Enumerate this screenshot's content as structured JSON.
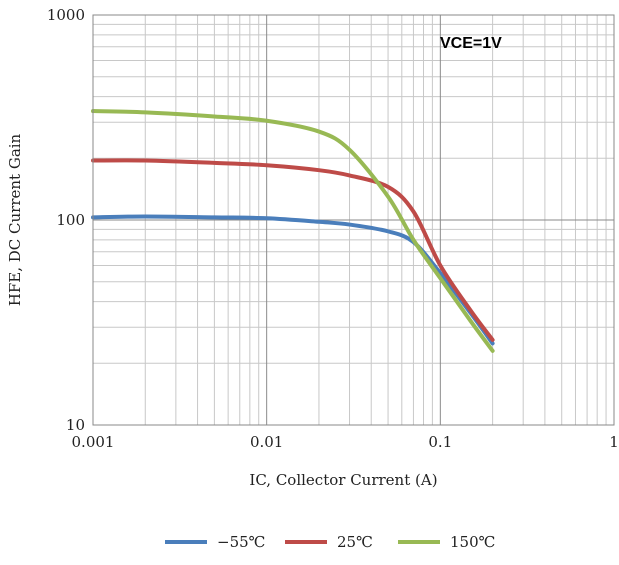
{
  "chart_data": {
    "type": "line",
    "title": "",
    "xlabel": "IC, Collector Current (A)",
    "ylabel": "HFE, DC Current Gain",
    "xscale": "log",
    "yscale": "log",
    "xlim": [
      0.001,
      1
    ],
    "ylim": [
      10,
      1000
    ],
    "xticks": [
      0.001,
      0.01,
      0.1,
      1
    ],
    "xtick_labels": [
      "0.001",
      "0.01",
      "0.1",
      "1"
    ],
    "yticks": [
      10,
      100,
      1000
    ],
    "ytick_labels": [
      "10",
      "100",
      "1000"
    ],
    "grid": true,
    "legend_position": "bottom",
    "annotation": "VCE=1V",
    "series": [
      {
        "name": "−55℃",
        "color": "#4a7ebb",
        "points": [
          [
            0.001,
            103
          ],
          [
            0.002,
            104
          ],
          [
            0.005,
            103
          ],
          [
            0.01,
            102
          ],
          [
            0.02,
            98
          ],
          [
            0.03,
            95
          ],
          [
            0.05,
            88
          ],
          [
            0.07,
            78
          ],
          [
            0.1,
            55
          ],
          [
            0.15,
            35
          ],
          [
            0.2,
            25
          ]
        ]
      },
      {
        "name": "25℃",
        "color": "#be4b48",
        "points": [
          [
            0.001,
            195
          ],
          [
            0.002,
            195
          ],
          [
            0.005,
            190
          ],
          [
            0.01,
            185
          ],
          [
            0.02,
            175
          ],
          [
            0.03,
            165
          ],
          [
            0.05,
            145
          ],
          [
            0.07,
            110
          ],
          [
            0.1,
            60
          ],
          [
            0.15,
            36
          ],
          [
            0.2,
            26
          ]
        ]
      },
      {
        "name": "150℃",
        "color": "#98b954",
        "points": [
          [
            0.001,
            340
          ],
          [
            0.002,
            335
          ],
          [
            0.005,
            320
          ],
          [
            0.01,
            305
          ],
          [
            0.02,
            270
          ],
          [
            0.03,
            220
          ],
          [
            0.05,
            130
          ],
          [
            0.07,
            80
          ],
          [
            0.1,
            52
          ],
          [
            0.15,
            32
          ],
          [
            0.2,
            23
          ]
        ]
      }
    ]
  }
}
